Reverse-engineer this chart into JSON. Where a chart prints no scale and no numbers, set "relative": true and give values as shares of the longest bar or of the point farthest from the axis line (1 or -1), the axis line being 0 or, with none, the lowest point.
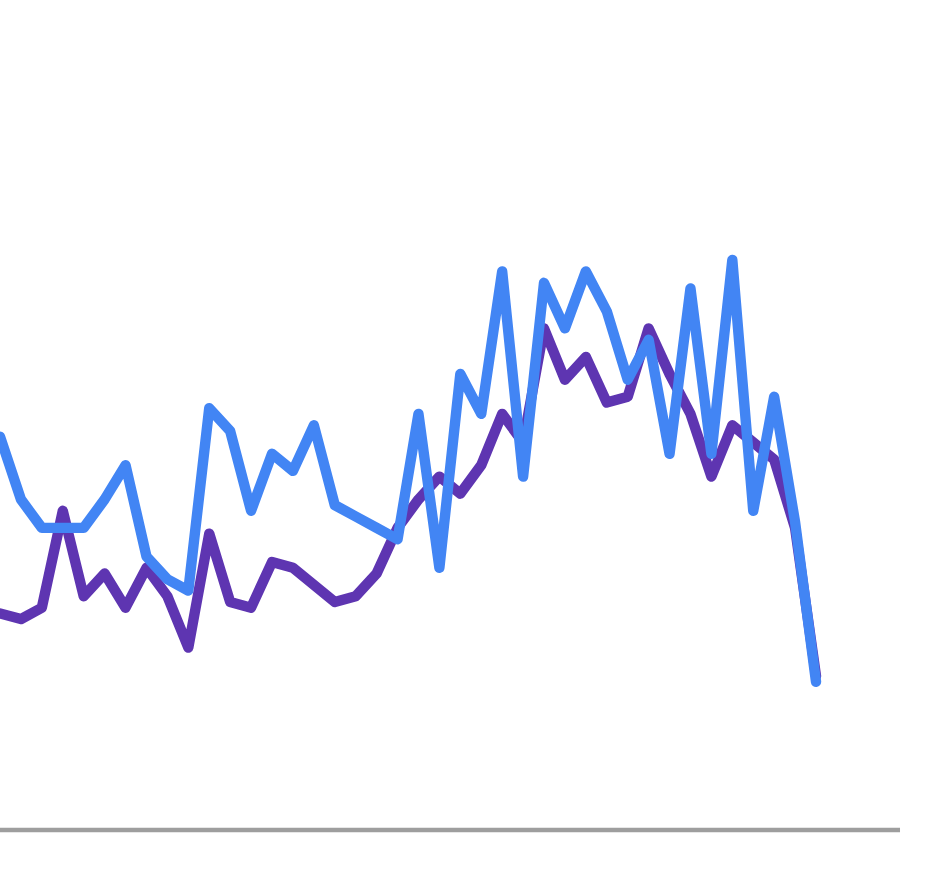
{
  "chart_data": {
    "type": "line",
    "relative": true,
    "categories": [
      null,
      null,
      null,
      null,
      null,
      null,
      null,
      null,
      null,
      null,
      null,
      null,
      null,
      null,
      null,
      null,
      null,
      null,
      null,
      null,
      null,
      null,
      null,
      null,
      null,
      null,
      null,
      null,
      null,
      null,
      null,
      null,
      null,
      null,
      null,
      null,
      null,
      null,
      null,
      null
    ],
    "series": [
      {
        "color": "#5e35b1",
        "values": [
          0.38,
          0.37,
          0.39,
          0.56,
          0.41,
          0.45,
          0.39,
          0.46,
          0.41,
          0.32,
          0.52,
          0.4,
          0.39,
          0.47,
          0.46,
          0.43,
          0.4,
          0.41,
          0.45,
          0.53,
          0.58,
          0.62,
          0.59,
          0.64,
          0.73,
          0.68,
          0.88,
          0.79,
          0.83,
          0.75,
          0.76,
          0.88,
          0.8,
          0.73,
          0.62,
          0.71,
          0.68,
          0.65,
          0.53,
          0.27
        ]
      },
      {
        "color": "#4285f4",
        "values": [
          0.69,
          0.58,
          0.53,
          0.53,
          0.53,
          0.58,
          0.64,
          0.48,
          0.44,
          0.42,
          0.74,
          0.7,
          0.56,
          0.66,
          0.63,
          0.71,
          0.57,
          0.55,
          0.53,
          0.51,
          0.73,
          0.46,
          0.8,
          0.73,
          0.98,
          0.62,
          0.96,
          0.88,
          0.98,
          0.91,
          0.79,
          0.86,
          0.66,
          0.95,
          0.66,
          1,
          0.56,
          0.76,
          0.54,
          0.26
        ]
      }
    ]
  }
}
